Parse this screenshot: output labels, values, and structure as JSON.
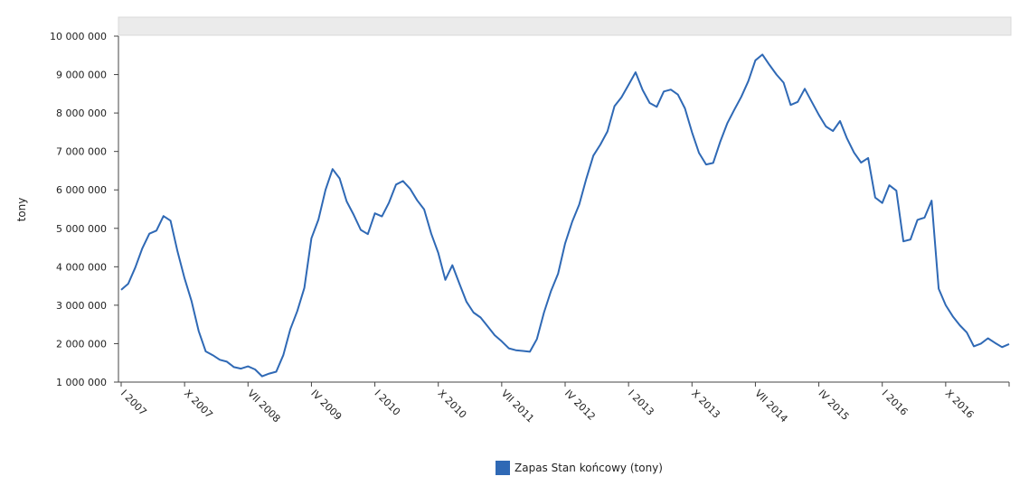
{
  "chart_data": {
    "type": "line",
    "ylabel": "tony",
    "xlabel": "",
    "title": "",
    "ylim": [
      1000000,
      10000000
    ],
    "y_ticks": [
      "1 000 000",
      "2 000 000",
      "3 000 000",
      "4 000 000",
      "5 000 000",
      "6 000 000",
      "7 000 000",
      "8 000 000",
      "9 000 000",
      "10 000 000"
    ],
    "x_ticks": [
      {
        "label": "I 2007",
        "index": 0
      },
      {
        "label": "X 2007",
        "index": 9
      },
      {
        "label": "VII 2008",
        "index": 18
      },
      {
        "label": "IV 2009",
        "index": 27
      },
      {
        "label": "I 2010",
        "index": 36
      },
      {
        "label": "X 2010",
        "index": 45
      },
      {
        "label": "VII 2011",
        "index": 54
      },
      {
        "label": "IV 2012",
        "index": 63
      },
      {
        "label": "I 2013",
        "index": 72
      },
      {
        "label": "X 2013",
        "index": 81
      },
      {
        "label": "VII 2014",
        "index": 90
      },
      {
        "label": "IV 2015",
        "index": 99
      },
      {
        "label": "I 2016",
        "index": 108
      },
      {
        "label": "X 2016",
        "index": 117
      }
    ],
    "grid": false,
    "legend_position": "bottom",
    "series": [
      {
        "name": "Zapas Stan końcowy (tony)",
        "color": "#2f69b5",
        "values": [
          3400000,
          3560000,
          3980000,
          4480000,
          4860000,
          4940000,
          5320000,
          5200000,
          4400000,
          3700000,
          3100000,
          2330000,
          1800000,
          1700000,
          1580000,
          1530000,
          1390000,
          1350000,
          1410000,
          1330000,
          1150000,
          1220000,
          1270000,
          1700000,
          2370000,
          2850000,
          3450000,
          4740000,
          5230000,
          6000000,
          6540000,
          6300000,
          5700000,
          5350000,
          4960000,
          4850000,
          5390000,
          5310000,
          5670000,
          6140000,
          6230000,
          6030000,
          5730000,
          5490000,
          4860000,
          4360000,
          3660000,
          4040000,
          3560000,
          3090000,
          2810000,
          2680000,
          2450000,
          2220000,
          2060000,
          1880000,
          1830000,
          1810000,
          1790000,
          2120000,
          2810000,
          3370000,
          3820000,
          4610000,
          5170000,
          5620000,
          6290000,
          6890000,
          7180000,
          7520000,
          8180000,
          8410000,
          8730000,
          9060000,
          8600000,
          8260000,
          8160000,
          8560000,
          8610000,
          8480000,
          8120000,
          7500000,
          6960000,
          6660000,
          6700000,
          7250000,
          7730000,
          8080000,
          8420000,
          8830000,
          9370000,
          9520000,
          9250000,
          9000000,
          8790000,
          8210000,
          8290000,
          8630000,
          8290000,
          7950000,
          7650000,
          7530000,
          7790000,
          7340000,
          6970000,
          6710000,
          6830000,
          5800000,
          5660000,
          6120000,
          5980000,
          4660000,
          4710000,
          5220000,
          5280000,
          5720000,
          3430000,
          3000000,
          2710000,
          2480000,
          2290000,
          1930000,
          2000000,
          2140000,
          2020000,
          1910000,
          1990000
        ]
      }
    ]
  }
}
